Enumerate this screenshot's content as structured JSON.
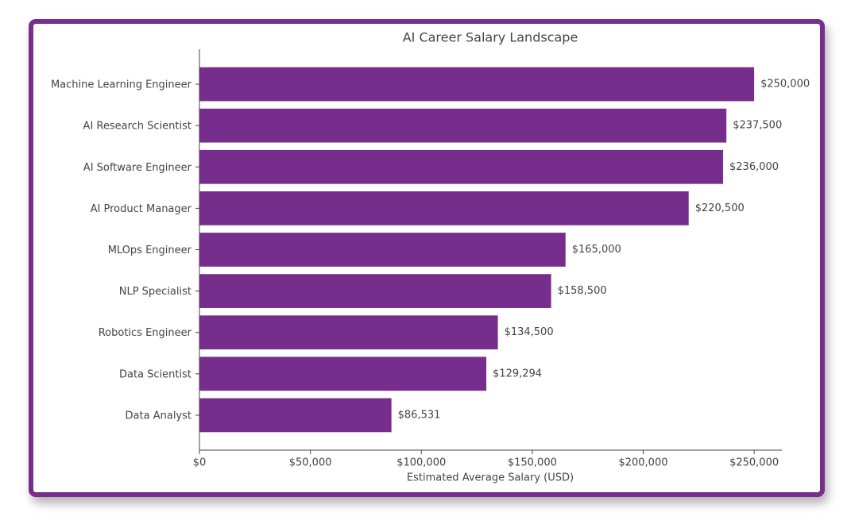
{
  "chart_data": {
    "type": "barh",
    "title": "AI Career Salary Landscape",
    "x_label": "Estimated Average Salary (USD)",
    "categories": [
      "Machine Learning Engineer",
      "AI Research Scientist",
      "AI Software Engineer",
      "AI Product Manager",
      "MLOps Engineer",
      "NLP Specialist",
      "Robotics Engineer",
      "Data Scientist",
      "Data Analyst"
    ],
    "values": [
      250000,
      237500,
      236000,
      220500,
      165000,
      158500,
      134500,
      129294,
      86531
    ],
    "value_labels": [
      "$250,000",
      "$237,500",
      "$236,000",
      "$220,500",
      "$165,000",
      "$158,500",
      "$134,500",
      "$129,294",
      "$86,531"
    ],
    "color": "#772d8b",
    "xlim": [
      0,
      262500
    ],
    "xticks": [
      {
        "value": 0,
        "label": "$0"
      },
      {
        "value": 50000,
        "label": "$50,000"
      },
      {
        "value": 100000,
        "label": "$100,000"
      },
      {
        "value": 150000,
        "label": "$150,000"
      },
      {
        "value": 200000,
        "label": "$200,000"
      },
      {
        "value": 250000,
        "label": "$250,000"
      }
    ],
    "grid": false
  }
}
